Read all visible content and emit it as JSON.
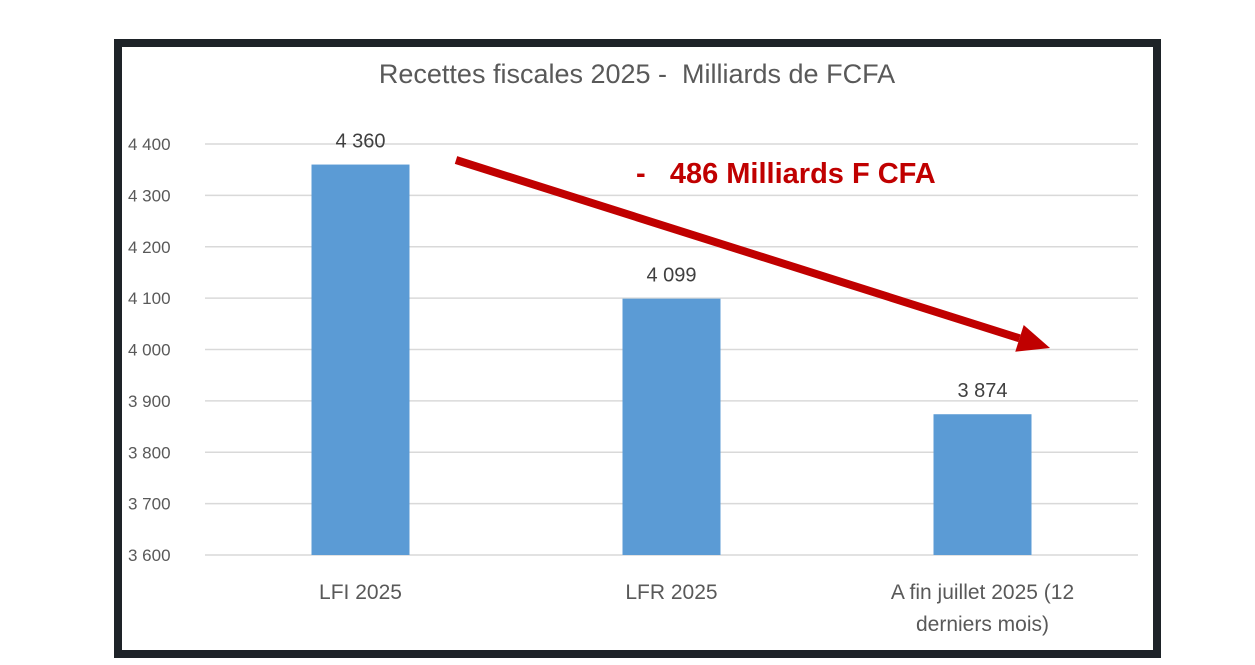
{
  "chart_data": {
    "type": "bar",
    "title": "Recettes fiscales 2025 -  Milliards de FCFA",
    "categories": [
      "LFI 2025",
      "LFR 2025",
      "A fin juillet 2025 (12 derniers mois)"
    ],
    "category_lines": [
      [
        "LFI 2025"
      ],
      [
        "LFR 2025"
      ],
      [
        "A fin juillet 2025 (12",
        "derniers mois)"
      ]
    ],
    "values": [
      4360,
      4099,
      3874
    ],
    "data_labels": [
      "4 360",
      "4 099",
      "3 874"
    ],
    "ylim": [
      3600,
      4400
    ],
    "yticks": [
      3600,
      3700,
      3800,
      3900,
      4000,
      4100,
      4200,
      4300,
      4400
    ],
    "ytick_labels": [
      "3 600",
      "3 700",
      "3 800",
      "3 900",
      "4 000",
      "4 100",
      "4 200",
      "4 300",
      "4 400"
    ],
    "grid": true,
    "legend": "none",
    "bar_color": "#5b9bd5",
    "annotation": {
      "text": "-   486 Milliards F CFA",
      "color": "#c00000"
    }
  }
}
